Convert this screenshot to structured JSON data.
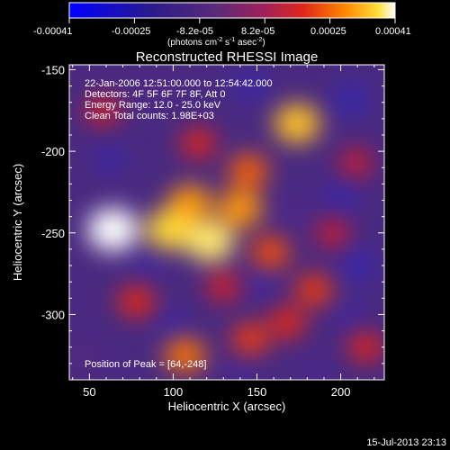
{
  "colorbar": {
    "ticks": [
      "-0.00041",
      "-0.00025",
      "-8.2e-05",
      "8.2e-05",
      "0.00025",
      "0.00041"
    ],
    "unit_label": "(photons cm",
    "unit_sup1": "-2",
    "unit_mid": " s",
    "unit_sup2": "-1",
    "unit_mid2": " asec",
    "unit_sup3": "-2",
    "unit_end": ")"
  },
  "annotations": {
    "time": "22-Jan-2006 12:51:00.000 to 12:54:42.000",
    "detectors": "Detectors: 4F 5F 6F 7F 8F, Att 0",
    "energy": "Energy Range: 12.0 - 25.0 keV",
    "clean": "Clean     Total counts: 1.98E+03",
    "peak": "Position of Peak = [64,-248]"
  },
  "footer": {
    "date": "15-Jul-2013 23:13"
  },
  "chart_data": {
    "type": "heatmap",
    "title": "Reconstructed RHESSI Image",
    "xlabel": "Heliocentric X (arcsec)",
    "ylabel": "Heliocentric Y (arcsec)",
    "xlim": [
      38,
      226
    ],
    "ylim": [
      -340,
      -147
    ],
    "xticks": [
      50,
      100,
      150,
      200
    ],
    "yticks": [
      -150,
      -200,
      -250,
      -300
    ],
    "clim": [
      -0.00041,
      0.00041
    ],
    "colormap": "blue-purple-red-yellow-white",
    "peak": [
      64,
      -248
    ],
    "sources": [
      {
        "x": 64,
        "y": -248,
        "value": 0.00041
      },
      {
        "x": 98,
        "y": -248,
        "value": 0.00036
      },
      {
        "x": 122,
        "y": -255,
        "value": 0.00038
      },
      {
        "x": 110,
        "y": -232,
        "value": 0.0003
      },
      {
        "x": 140,
        "y": -235,
        "value": 0.0003
      },
      {
        "x": 145,
        "y": -212,
        "value": 0.00024
      },
      {
        "x": 174,
        "y": -183,
        "value": 0.00034
      },
      {
        "x": 158,
        "y": -262,
        "value": 0.00022
      },
      {
        "x": 184,
        "y": -285,
        "value": 0.0002
      },
      {
        "x": 168,
        "y": -305,
        "value": 0.00018
      },
      {
        "x": 107,
        "y": -325,
        "value": 0.00026
      },
      {
        "x": 146,
        "y": -315,
        "value": 0.0002
      },
      {
        "x": 78,
        "y": -292,
        "value": 0.00018
      },
      {
        "x": 58,
        "y": -175,
        "value": 0.00014
      },
      {
        "x": 115,
        "y": -195,
        "value": 0.00016
      },
      {
        "x": 195,
        "y": -250,
        "value": 0.00012
      },
      {
        "x": 215,
        "y": -320,
        "value": 0.00016
      },
      {
        "x": 209,
        "y": -207,
        "value": 0.00012
      },
      {
        "x": 130,
        "y": -283,
        "value": 0.00014
      },
      {
        "x": 47,
        "y": -325,
        "value": -4e-05
      },
      {
        "x": 146,
        "y": -160,
        "value": -0.00018
      },
      {
        "x": 206,
        "y": -168,
        "value": -0.0002
      },
      {
        "x": 62,
        "y": -205,
        "value": -0.00016
      },
      {
        "x": 85,
        "y": -270,
        "value": -0.00014
      },
      {
        "x": 210,
        "y": -270,
        "value": -0.0002
      },
      {
        "x": 152,
        "y": -280,
        "value": -0.00014
      },
      {
        "x": 100,
        "y": -308,
        "value": -0.00016
      },
      {
        "x": 205,
        "y": -300,
        "value": -0.00014
      },
      {
        "x": 200,
        "y": -228,
        "value": -0.00018
      },
      {
        "x": 172,
        "y": -238,
        "value": -8e-05
      },
      {
        "x": 140,
        "y": -335,
        "value": -0.00012
      },
      {
        "x": 90,
        "y": -160,
        "value": -6e-05
      },
      {
        "x": 185,
        "y": -335,
        "value": -0.0001
      }
    ]
  }
}
